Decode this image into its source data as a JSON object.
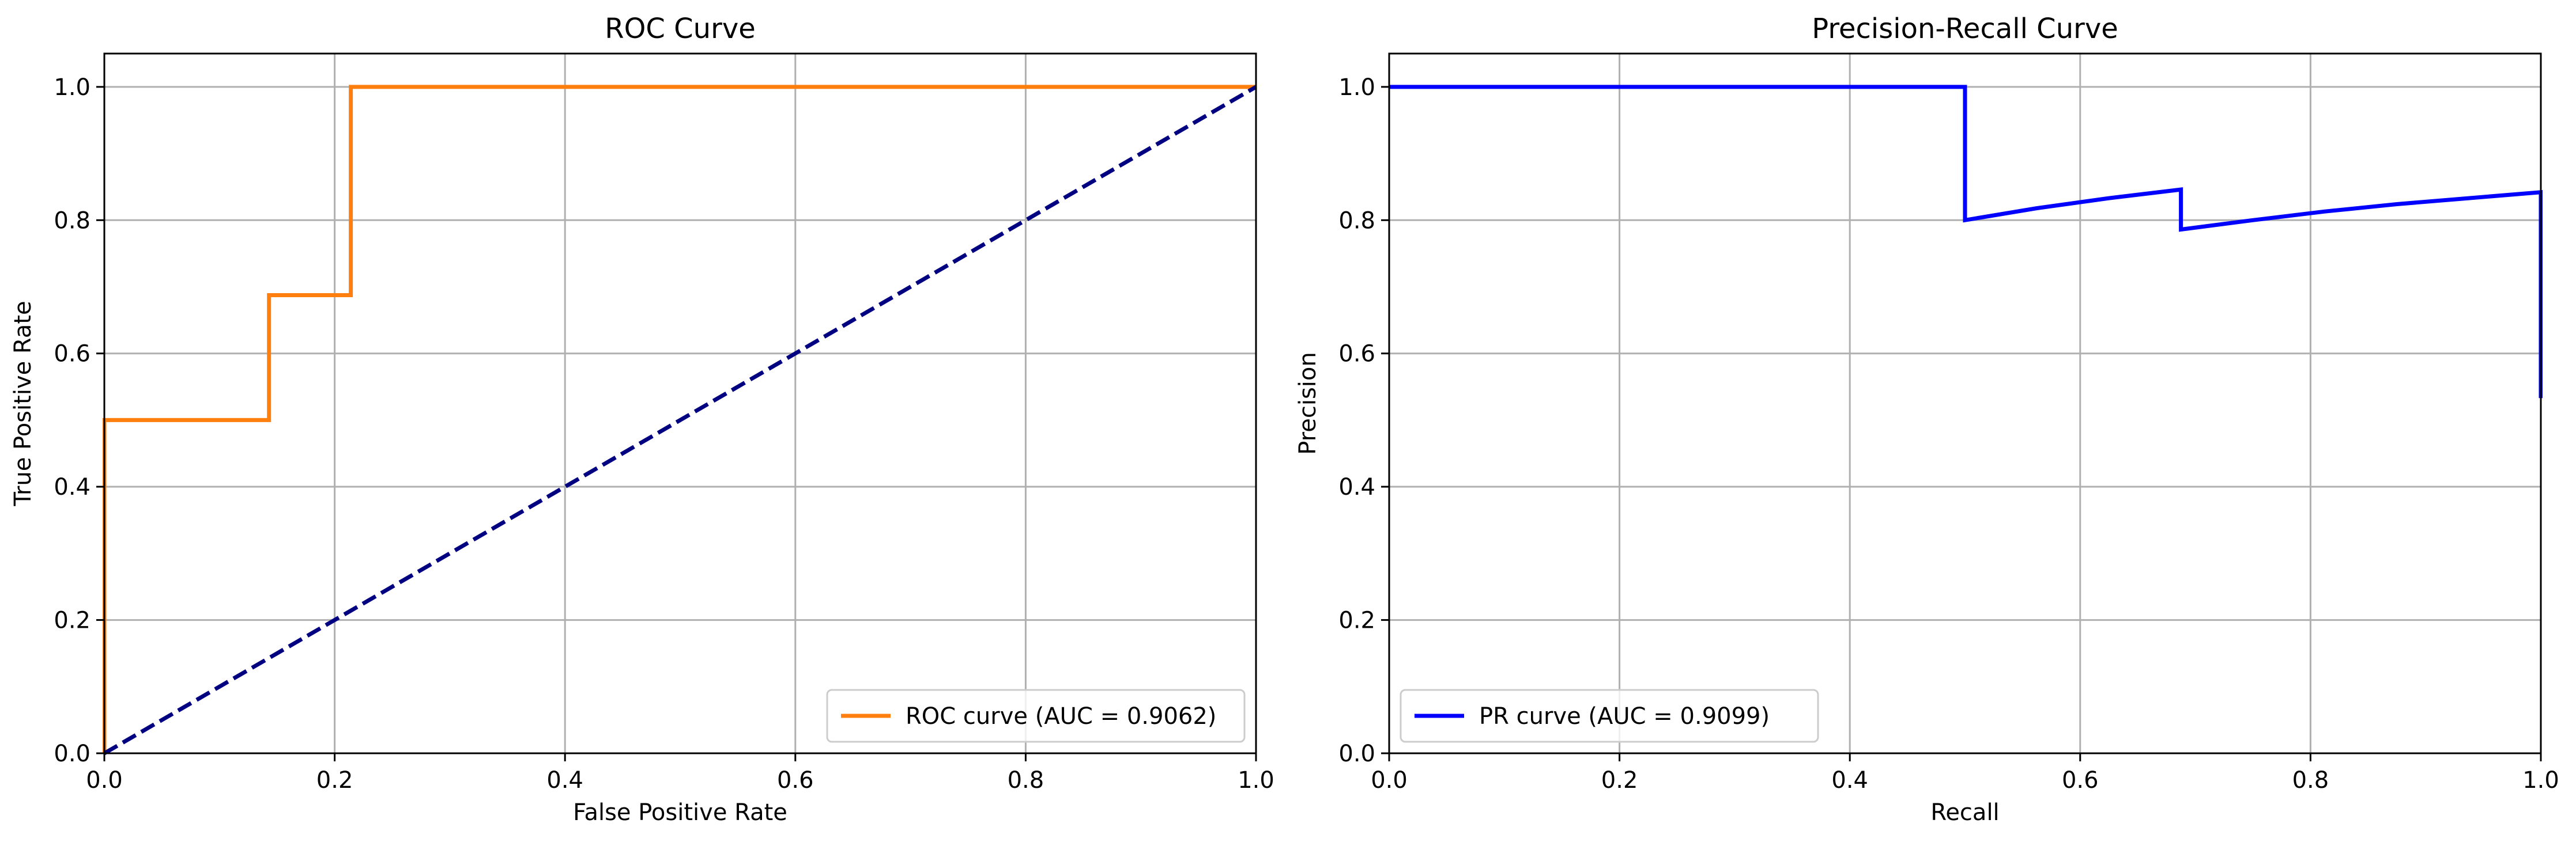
{
  "chart_data": [
    {
      "type": "line",
      "title": "ROC Curve",
      "xlabel": "False Positive Rate",
      "ylabel": "True Positive Rate",
      "xlim": [
        0.0,
        1.0
      ],
      "ylim": [
        0.0,
        1.05
      ],
      "xticks": [
        "0.0",
        "0.2",
        "0.4",
        "0.6",
        "0.8",
        "1.0"
      ],
      "yticks": [
        "0.0",
        "0.2",
        "0.4",
        "0.6",
        "0.8",
        "1.0"
      ],
      "grid": true,
      "legend_position": "lower right",
      "series": [
        {
          "name": "ROC curve (AUC = 0.9062)",
          "color": "#ff7f0e",
          "dash": "solid",
          "x": [
            0.0,
            0.0,
            0.0,
            0.143,
            0.143,
            0.214,
            0.214,
            1.0
          ],
          "y": [
            0.0,
            0.062,
            0.5,
            0.5,
            0.6875,
            0.6875,
            1.0,
            1.0
          ]
        },
        {
          "name": "",
          "color": "#000080",
          "dash": "dashed",
          "x": [
            0.0,
            1.0
          ],
          "y": [
            0.0,
            1.0
          ]
        }
      ]
    },
    {
      "type": "line",
      "title": "Precision-Recall Curve",
      "xlabel": "Recall",
      "ylabel": "Precision",
      "xlim": [
        0.0,
        1.0
      ],
      "ylim": [
        0.0,
        1.05
      ],
      "xticks": [
        "0.0",
        "0.2",
        "0.4",
        "0.6",
        "0.8",
        "1.0"
      ],
      "yticks": [
        "0.0",
        "0.2",
        "0.4",
        "0.6",
        "0.8",
        "1.0"
      ],
      "grid": true,
      "legend_position": "lower left",
      "series": [
        {
          "name": "PR curve (AUC = 0.9099)",
          "color": "#0000ff",
          "dash": "solid",
          "x": [
            0.0,
            0.0625,
            0.125,
            0.1875,
            0.25,
            0.3125,
            0.375,
            0.4375,
            0.5,
            0.5,
            0.5625,
            0.625,
            0.6875,
            0.6875,
            0.75,
            0.8125,
            0.875,
            0.9375,
            1.0,
            1.0
          ],
          "y": [
            1.0,
            1.0,
            1.0,
            1.0,
            1.0,
            1.0,
            1.0,
            1.0,
            1.0,
            0.8,
            0.818,
            0.833,
            0.846,
            0.786,
            0.8,
            0.813,
            0.824,
            0.833,
            0.842,
            0.533
          ]
        }
      ]
    }
  ]
}
